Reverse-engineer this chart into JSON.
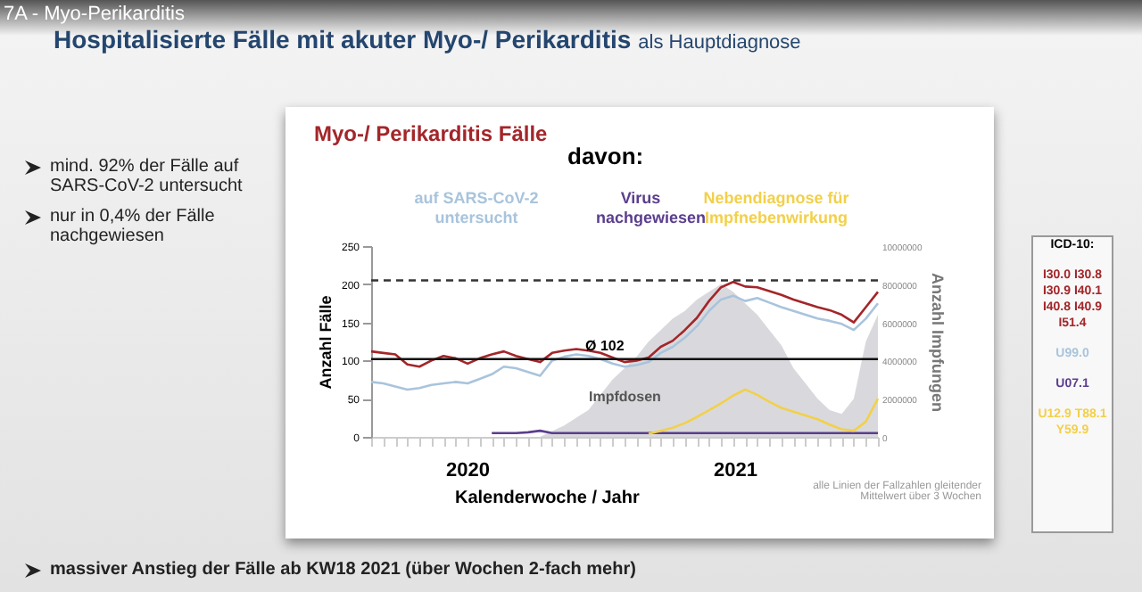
{
  "chart_data": {
    "type": "line",
    "title": "Hospitalisierte Fälle mit akuter Myo-/ Perikarditis",
    "subtitle": "als Hauptdiagnose",
    "xlabel": "Kalenderwoche / Jahr",
    "ylabel": "Anzahl Fälle",
    "y2label": "Anzahl Impfungen",
    "categories": [
      null,
      null,
      null,
      null,
      null,
      null,
      null,
      null,
      null,
      null,
      null,
      null,
      null,
      null,
      null,
      null,
      null,
      null,
      null,
      null,
      null,
      null,
      null,
      null,
      null,
      null,
      null,
      null,
      null,
      null,
      null,
      null,
      null,
      null,
      null,
      null,
      null,
      null,
      null,
      null,
      null,
      null,
      null
    ],
    "ylim": [
      0,
      250
    ],
    "yticks": [
      0,
      50,
      100,
      150,
      200,
      250
    ],
    "y2lim": [
      0,
      10000000
    ],
    "y2ticks": [
      0,
      2000000,
      4000000,
      6000000,
      8000000,
      10000000
    ],
    "series": [
      {
        "name": "Impfdosen",
        "type": "area",
        "axis": "y2",
        "color": "#d0d0d4",
        "values": [
          null,
          null,
          null,
          null,
          null,
          null,
          null,
          null,
          null,
          null,
          null,
          null,
          null,
          null,
          0,
          300000,
          600000,
          1000000,
          1400000,
          2200000,
          3000000,
          3600000,
          4200000,
          5000000,
          5600000,
          6200000,
          6600000,
          7200000,
          7600000,
          8000000,
          7600000,
          7000000,
          6400000,
          5600000,
          4800000,
          3600000,
          2800000,
          2000000,
          1400000,
          1200000,
          2000000,
          5000000,
          6400000
        ]
      },
      {
        "name": "auf SARS-CoV-2 untersucht",
        "color": "#a9c4dc",
        "values": [
          72,
          70,
          66,
          62,
          64,
          68,
          70,
          72,
          70,
          76,
          82,
          92,
          90,
          85,
          80,
          100,
          105,
          108,
          106,
          102,
          96,
          92,
          94,
          98,
          110,
          118,
          130,
          145,
          165,
          180,
          185,
          178,
          182,
          176,
          170,
          165,
          160,
          155,
          152,
          148,
          140,
          155,
          175
        ]
      },
      {
        "name": "Virus nachgewiesen",
        "color": "#5b3e8e",
        "values": [
          null,
          null,
          null,
          null,
          null,
          null,
          null,
          null,
          null,
          null,
          5,
          5,
          5,
          6,
          8,
          5,
          5,
          5,
          5,
          5,
          5,
          5,
          5,
          5,
          5,
          5,
          5,
          5,
          5,
          5,
          5,
          5,
          5,
          5,
          5,
          5,
          5,
          5,
          5,
          5,
          5,
          5,
          5
        ]
      },
      {
        "name": "Nebendiagnose für Impfnebenwirkung",
        "color": "#f2d04a",
        "values": [
          null,
          null,
          null,
          null,
          null,
          null,
          null,
          null,
          null,
          null,
          null,
          null,
          null,
          null,
          null,
          null,
          null,
          null,
          null,
          null,
          null,
          null,
          null,
          4,
          8,
          12,
          18,
          26,
          35,
          44,
          54,
          62,
          55,
          46,
          38,
          33,
          28,
          23,
          16,
          10,
          8,
          20,
          50
        ]
      },
      {
        "name": "Myo-/ Perikarditis Fälle",
        "color": "#a3262a",
        "values": [
          112,
          110,
          108,
          95,
          92,
          100,
          106,
          103,
          96,
          103,
          108,
          112,
          106,
          102,
          98,
          110,
          113,
          115,
          113,
          110,
          104,
          98,
          100,
          104,
          118,
          126,
          140,
          156,
          178,
          196,
          203,
          197,
          196,
          191,
          186,
          180,
          175,
          170,
          166,
          160,
          150,
          170,
          190
        ]
      }
    ],
    "ref_lines": [
      {
        "axis": "y",
        "value": 102,
        "label": "Ø 102",
        "color": "#111111",
        "line_style": "solid"
      },
      {
        "axis": "y",
        "value": 205,
        "color": "#333333",
        "line_style": "dashed"
      }
    ],
    "annotations": [
      "7A - Myo-Perikarditis",
      "davon:",
      "2020",
      "2021",
      "alle Linien der Fallzahlen gleitender Mittelwert über 3 Wochen",
      "mind. 92% der Fälle auf SARS-CoV-2 untersucht",
      "nur in 0,4% der Fälle nachgewiesen",
      "massiver Anstieg der Fälle ab KW18 2021 (über Wochen 2-fach mehr)",
      "ICD-10:",
      "I30.0 I30.8 I30.9 I40.1 I40.8 I40.9 I51.4",
      "U99.0",
      "U07.1",
      "U12.9 T88.1 Y59.9"
    ]
  }
}
